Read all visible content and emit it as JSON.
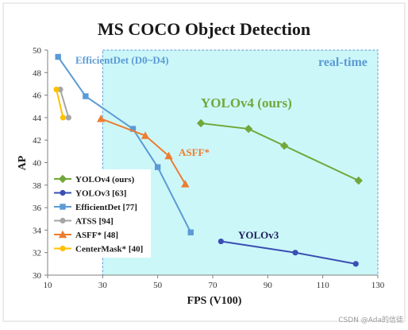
{
  "chart_data": {
    "type": "line",
    "title": "MS COCO Object Detection",
    "xlabel": "FPS (V100)",
    "ylabel": "AP",
    "xlim": [
      10,
      130
    ],
    "ylim": [
      30,
      50
    ],
    "xticks": [
      10,
      30,
      50,
      70,
      90,
      110,
      130
    ],
    "yticks": [
      30,
      32,
      34,
      36,
      38,
      40,
      42,
      44,
      46,
      48,
      50
    ],
    "grid": false,
    "legend_placement": "bottom-left",
    "realtime_region": {
      "x_from": 30,
      "label": "real-time"
    },
    "series": [
      {
        "name": "YOLOv4 (ours)",
        "color": "#70a83a",
        "marker": "diamond",
        "x": [
          65.7,
          83.0,
          96.0,
          123.0
        ],
        "y": [
          43.5,
          43.0,
          41.5,
          38.4
        ]
      },
      {
        "name": "YOLOv3 [63]",
        "color": "#3a4fb3",
        "marker": "circle",
        "x": [
          73.0,
          100.0,
          122.0
        ],
        "y": [
          33.0,
          32.0,
          31.0
        ]
      },
      {
        "name": "EfficientDet [77]",
        "color": "#5b9bd5",
        "marker": "square",
        "x": [
          13.8,
          23.8,
          41.0,
          50.0,
          62.0
        ],
        "y": [
          49.4,
          45.9,
          43.0,
          39.6,
          33.8
        ]
      },
      {
        "name": "ATSS [94]",
        "color": "#a5a5a5",
        "marker": "circle",
        "x": [
          14.6,
          17.6
        ],
        "y": [
          46.5,
          44.0
        ]
      },
      {
        "name": "ASFF* [48]",
        "color": "#ed7d31",
        "marker": "triangle",
        "x": [
          29.4,
          45.5,
          54.0,
          60.0
        ],
        "y": [
          43.9,
          42.4,
          40.6,
          38.1
        ]
      },
      {
        "name": "CenterMask* [40]",
        "color": "#ffc000",
        "marker": "circle",
        "x": [
          13.2,
          15.6
        ],
        "y": [
          46.5,
          44.0
        ]
      }
    ],
    "annotations": [
      {
        "text": "EfficientDet (D0~D4)",
        "color": "#5b9bd5"
      },
      {
        "text": "real-time",
        "color": "#5b9bd5"
      },
      {
        "text": "YOLOv4 (ours)",
        "color": "#70a83a"
      },
      {
        "text": "ASFF*",
        "color": "#ed7d31"
      },
      {
        "text": "YOLOv3",
        "color": "#1f1f5a"
      }
    ]
  },
  "watermark": "CSDN @Ada的信徒"
}
